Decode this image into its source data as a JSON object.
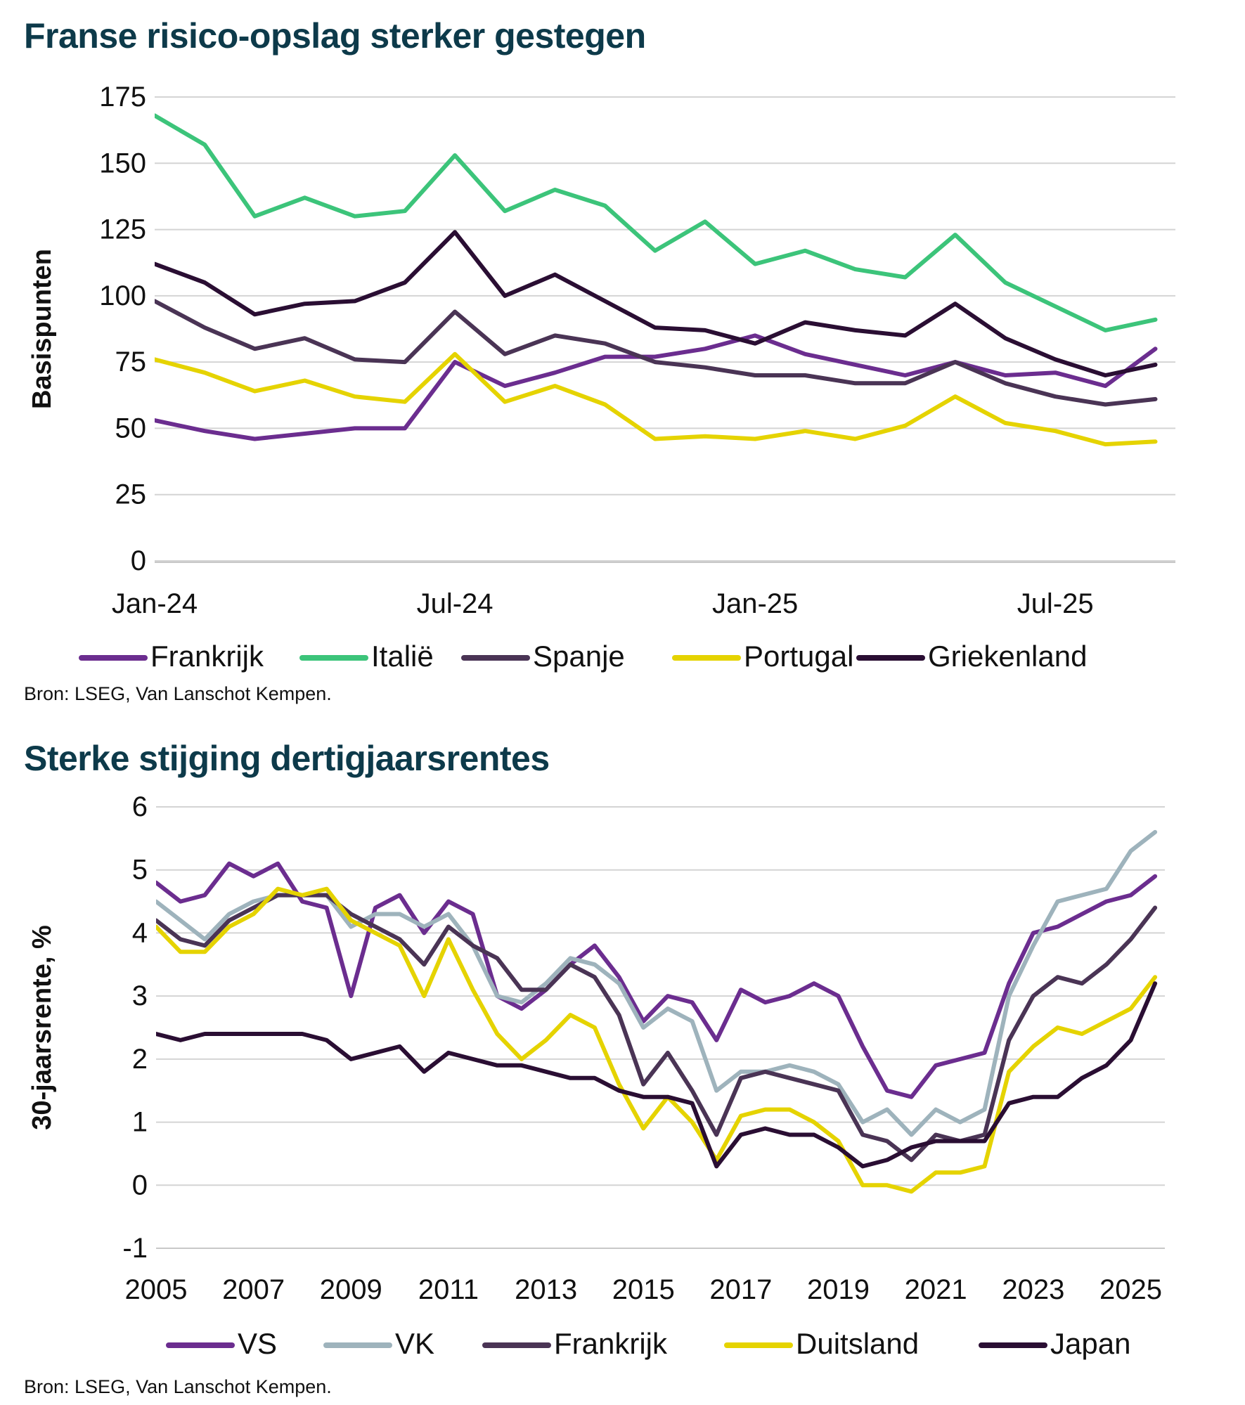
{
  "chart_data": [
    {
      "type": "line",
      "title": "Franse risico-opslag sterker gestegen",
      "ylabel": "Basispunten",
      "xlabel": "",
      "ylim": [
        0,
        175
      ],
      "yticks": [
        "0",
        "25",
        "50",
        "75",
        "100",
        "125",
        "150",
        "175"
      ],
      "xticks": [
        "Jan-24",
        "Jul-24",
        "Jan-25",
        "Jul-25"
      ],
      "x": [
        "2024-01",
        "2024-02",
        "2024-03",
        "2024-04",
        "2024-05",
        "2024-06",
        "2024-07",
        "2024-08",
        "2024-09",
        "2024-10",
        "2024-11",
        "2024-12",
        "2025-01",
        "2025-02",
        "2025-03",
        "2025-04",
        "2025-05",
        "2025-06",
        "2025-07",
        "2025-08",
        "2025-09"
      ],
      "grid": true,
      "legend": "bottom",
      "source": "Bron: LSEG, Van Lanschot Kempen.",
      "series": [
        {
          "name": "Frankrijk",
          "color": "#6b2d8f",
          "values": [
            53,
            49,
            46,
            48,
            50,
            50,
            75,
            66,
            71,
            77,
            77,
            80,
            85,
            78,
            74,
            70,
            75,
            70,
            71,
            66,
            80
          ]
        },
        {
          "name": "Italië",
          "color": "#3cc47a",
          "values": [
            168,
            157,
            130,
            137,
            130,
            132,
            153,
            132,
            140,
            134,
            117,
            128,
            112,
            117,
            110,
            107,
            123,
            105,
            96,
            87,
            91
          ]
        },
        {
          "name": "Spanje",
          "color": "#4a3455",
          "values": [
            98,
            88,
            80,
            84,
            76,
            75,
            94,
            78,
            85,
            82,
            75,
            73,
            70,
            70,
            67,
            67,
            75,
            67,
            62,
            59,
            61
          ]
        },
        {
          "name": "Portugal",
          "color": "#e5d300",
          "values": [
            76,
            71,
            64,
            68,
            62,
            60,
            78,
            60,
            66,
            59,
            46,
            47,
            46,
            49,
            46,
            51,
            62,
            52,
            49,
            44,
            45
          ]
        },
        {
          "name": "Griekenland",
          "color": "#2a0e33",
          "values": [
            112,
            105,
            93,
            97,
            98,
            105,
            124,
            100,
            108,
            98,
            88,
            87,
            82,
            90,
            87,
            85,
            97,
            84,
            76,
            70,
            74
          ]
        }
      ]
    },
    {
      "type": "line",
      "title": "Sterke stijging dertigjaarsrentes",
      "ylabel": "30-jaarsrente, %",
      "xlabel": "",
      "ylim": [
        -1,
        6
      ],
      "yticks": [
        "-1",
        "0",
        "1",
        "2",
        "3",
        "4",
        "5",
        "6"
      ],
      "xticks": [
        "2005",
        "2007",
        "2009",
        "2011",
        "2013",
        "2015",
        "2017",
        "2019",
        "2021",
        "2023",
        "2025"
      ],
      "x": [
        2005.0,
        2005.5,
        2006.0,
        2006.5,
        2007.0,
        2007.5,
        2008.0,
        2008.5,
        2009.0,
        2009.5,
        2010.0,
        2010.5,
        2011.0,
        2011.5,
        2012.0,
        2012.5,
        2013.0,
        2013.5,
        2014.0,
        2014.5,
        2015.0,
        2015.5,
        2016.0,
        2016.5,
        2017.0,
        2017.5,
        2018.0,
        2018.5,
        2019.0,
        2019.5,
        2020.0,
        2020.5,
        2021.0,
        2021.5,
        2022.0,
        2022.5,
        2023.0,
        2023.5,
        2024.0,
        2024.5,
        2025.0,
        2025.5
      ],
      "grid": true,
      "legend": "bottom",
      "source": "Bron: LSEG, Van Lanschot Kempen.",
      "series": [
        {
          "name": "VS",
          "color": "#6b2d8f",
          "values": [
            4.8,
            4.5,
            4.6,
            5.1,
            4.9,
            5.1,
            4.5,
            4.4,
            3.0,
            4.4,
            4.6,
            4.0,
            4.5,
            4.3,
            3.0,
            2.8,
            3.1,
            3.5,
            3.8,
            3.3,
            2.6,
            3.0,
            2.9,
            2.3,
            3.1,
            2.9,
            3.0,
            3.2,
            3.0,
            2.2,
            1.5,
            1.4,
            1.9,
            2.0,
            2.1,
            3.2,
            4.0,
            4.1,
            4.3,
            4.5,
            4.6,
            4.9
          ]
        },
        {
          "name": "VK",
          "color": "#9eb3bc",
          "values": [
            4.5,
            4.2,
            3.9,
            4.3,
            4.5,
            4.6,
            4.6,
            4.6,
            4.1,
            4.3,
            4.3,
            4.1,
            4.3,
            3.8,
            3.0,
            2.9,
            3.2,
            3.6,
            3.5,
            3.2,
            2.5,
            2.8,
            2.6,
            1.5,
            1.8,
            1.8,
            1.9,
            1.8,
            1.6,
            1.0,
            1.2,
            0.8,
            1.2,
            1.0,
            1.2,
            3.0,
            3.8,
            4.5,
            4.6,
            4.7,
            5.3,
            5.6
          ]
        },
        {
          "name": "Frankrijk",
          "color": "#4a3455",
          "values": [
            4.2,
            3.9,
            3.8,
            4.2,
            4.4,
            4.6,
            4.6,
            4.6,
            4.3,
            4.1,
            3.9,
            3.5,
            4.1,
            3.8,
            3.6,
            3.1,
            3.1,
            3.5,
            3.3,
            2.7,
            1.6,
            2.1,
            1.5,
            0.8,
            1.7,
            1.8,
            1.7,
            1.6,
            1.5,
            0.8,
            0.7,
            0.4,
            0.8,
            0.7,
            0.8,
            2.3,
            3.0,
            3.3,
            3.2,
            3.5,
            3.9,
            4.4
          ]
        },
        {
          "name": "Duitsland",
          "color": "#e5d300",
          "values": [
            4.1,
            3.7,
            3.7,
            4.1,
            4.3,
            4.7,
            4.6,
            4.7,
            4.2,
            4.0,
            3.8,
            3.0,
            3.9,
            3.1,
            2.4,
            2.0,
            2.3,
            2.7,
            2.5,
            1.6,
            0.9,
            1.4,
            1.0,
            0.4,
            1.1,
            1.2,
            1.2,
            1.0,
            0.7,
            0.0,
            0.0,
            -0.1,
            0.2,
            0.2,
            0.3,
            1.8,
            2.2,
            2.5,
            2.4,
            2.6,
            2.8,
            3.3
          ]
        },
        {
          "name": "Japan",
          "color": "#2a0e33",
          "values": [
            2.4,
            2.3,
            2.4,
            2.4,
            2.4,
            2.4,
            2.4,
            2.3,
            2.0,
            2.1,
            2.2,
            1.8,
            2.1,
            2.0,
            1.9,
            1.9,
            1.8,
            1.7,
            1.7,
            1.5,
            1.4,
            1.4,
            1.3,
            0.3,
            0.8,
            0.9,
            0.8,
            0.8,
            0.6,
            0.3,
            0.4,
            0.6,
            0.7,
            0.7,
            0.7,
            1.3,
            1.4,
            1.4,
            1.7,
            1.9,
            2.3,
            3.2
          ]
        }
      ]
    }
  ]
}
